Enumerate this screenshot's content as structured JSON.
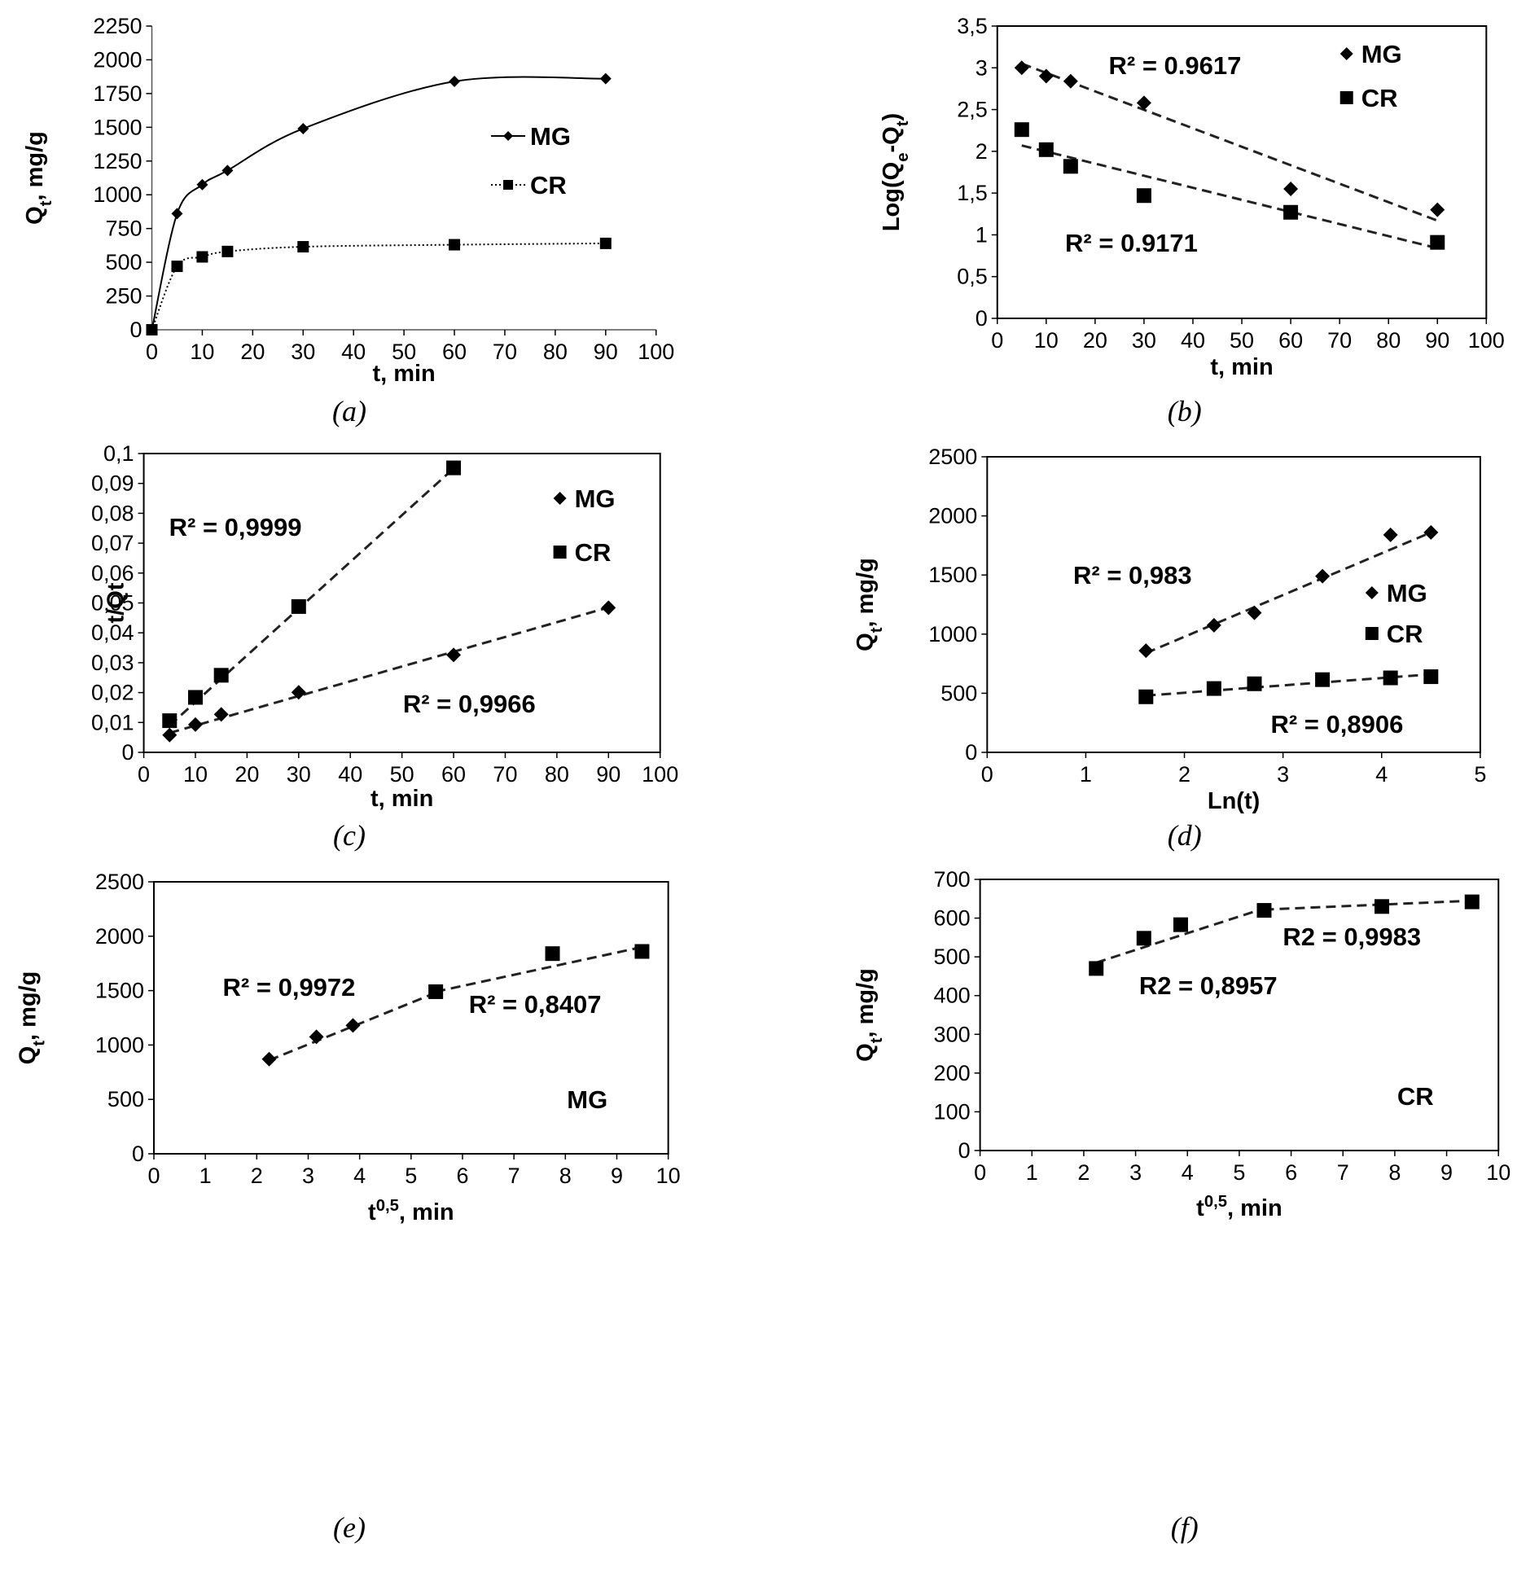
{
  "chart_data": [
    {
      "type": "line",
      "caption": "(a)",
      "xlabel": "t, min",
      "ylabel": [
        "Q",
        {
          "sub": "t"
        },
        ", mg/g"
      ],
      "xlim": [
        0,
        100
      ],
      "xticks": [
        0,
        10,
        20,
        30,
        40,
        50,
        60,
        70,
        80,
        90,
        100
      ],
      "ylim": [
        0,
        2250
      ],
      "yticks": [
        0,
        250,
        500,
        750,
        1000,
        1250,
        1500,
        1750,
        2000,
        2250
      ],
      "frame": false,
      "series": [
        {
          "name": "MG",
          "color": "#000000",
          "marker": "diamond",
          "dash": "none",
          "x": [
            0,
            5,
            10,
            15,
            30,
            60,
            90
          ],
          "values": [
            0,
            860,
            1075,
            1180,
            1490,
            1840,
            1860
          ]
        },
        {
          "name": "CR",
          "color": "#000000",
          "marker": "square",
          "dash": "dotted",
          "x": [
            0,
            5,
            10,
            15,
            30,
            60,
            90
          ],
          "values": [
            0,
            470,
            540,
            580,
            615,
            630,
            640
          ]
        }
      ]
    },
    {
      "type": "scatter",
      "caption": "(b)",
      "xlabel": "t, min",
      "ylabel": [
        "Log(Q",
        {
          "sub": "e"
        },
        "-Q",
        {
          "sub": "t"
        },
        ")"
      ],
      "xlim": [
        0,
        100
      ],
      "xticks": [
        0,
        10,
        20,
        30,
        40,
        50,
        60,
        70,
        80,
        90,
        100
      ],
      "ylim": [
        0,
        3.5
      ],
      "yticks": [
        0,
        {
          "value": 0.5,
          "label": "0,5"
        },
        1,
        {
          "value": 1.5,
          "label": "1,5"
        },
        2,
        {
          "value": 2.5,
          "label": "2,5"
        },
        3,
        {
          "value": 3.5,
          "label": "3,5"
        }
      ],
      "frame": true,
      "series": [
        {
          "name": "MG",
          "color": "#000000",
          "marker": "diamond",
          "x": [
            5,
            10,
            15,
            30,
            60,
            90
          ],
          "values": [
            3.0,
            2.9,
            2.84,
            2.58,
            1.55,
            1.3
          ]
        },
        {
          "name": "CR",
          "color": "#000000",
          "marker": "square",
          "x": [
            5,
            10,
            15,
            30,
            60,
            90
          ],
          "values": [
            2.26,
            2.02,
            1.82,
            1.47,
            1.27,
            0.91
          ]
        }
      ],
      "fits": [
        {
          "x": [
            5,
            90
          ],
          "y": [
            3.05,
            1.17
          ]
        },
        {
          "x": [
            5,
            90
          ],
          "y": [
            2.07,
            0.84
          ]
        }
      ],
      "annotations": [
        "R² = 0.9617",
        "R² = 0.9171"
      ]
    },
    {
      "type": "scatter",
      "caption": "(c)",
      "xlabel": "t, min",
      "ylabel": "t/Qt",
      "xlim": [
        0,
        100
      ],
      "xticks": [
        0,
        10,
        20,
        30,
        40,
        50,
        60,
        70,
        80,
        90,
        100
      ],
      "ylim": [
        0,
        0.1
      ],
      "yticks": [
        0,
        {
          "value": 0.01,
          "label": "0,01"
        },
        {
          "value": 0.02,
          "label": "0,02"
        },
        {
          "value": 0.03,
          "label": "0,03"
        },
        {
          "value": 0.04,
          "label": "0,04"
        },
        {
          "value": 0.05,
          "label": "0,05"
        },
        {
          "value": 0.06,
          "label": "0,06"
        },
        {
          "value": 0.07,
          "label": "0,07"
        },
        {
          "value": 0.08,
          "label": "0,08"
        },
        {
          "value": 0.09,
          "label": "0,09"
        },
        {
          "value": 0.1,
          "label": "0,1"
        }
      ],
      "frame": true,
      "series": [
        {
          "name": "MG",
          "color": "#000000",
          "marker": "diamond",
          "x": [
            5,
            10,
            15,
            30,
            60,
            90
          ],
          "values": [
            0.0058,
            0.0093,
            0.0127,
            0.0201,
            0.0326,
            0.0484
          ]
        },
        {
          "name": "CR",
          "color": "#000000",
          "marker": "square",
          "x": [
            5,
            10,
            15,
            30,
            60
          ],
          "values": [
            0.0106,
            0.0184,
            0.0258,
            0.0488,
            0.0952
          ]
        }
      ],
      "fits": [
        {
          "x": [
            5,
            60
          ],
          "y": [
            0.009,
            0.095
          ]
        },
        {
          "x": [
            5,
            90
          ],
          "y": [
            0.0065,
            0.0485
          ]
        }
      ],
      "annotations": [
        "R² = 0,9999",
        "R² = 0,9966"
      ]
    },
    {
      "type": "scatter",
      "caption": "(d)",
      "xlabel": "Ln(t)",
      "ylabel": [
        "Q",
        {
          "sub": "t"
        },
        ", mg/g"
      ],
      "xlim": [
        0,
        5
      ],
      "xticks": [
        0,
        1,
        2,
        3,
        4,
        5
      ],
      "ylim": [
        0,
        2500
      ],
      "yticks": [
        0,
        500,
        1000,
        1500,
        2000,
        2500
      ],
      "frame": true,
      "series": [
        {
          "name": "MG",
          "color": "#000000",
          "marker": "diamond",
          "x": [
            1.61,
            2.3,
            2.71,
            3.4,
            4.09,
            4.5
          ],
          "values": [
            860,
            1075,
            1180,
            1490,
            1840,
            1860
          ]
        },
        {
          "name": "CR",
          "color": "#000000",
          "marker": "square",
          "x": [
            1.61,
            2.3,
            2.71,
            3.4,
            4.09,
            4.5
          ],
          "values": [
            470,
            540,
            580,
            615,
            630,
            640
          ]
        }
      ],
      "fits": [
        {
          "x": [
            1.61,
            4.5
          ],
          "y": [
            840,
            1860
          ]
        },
        {
          "x": [
            1.61,
            4.5
          ],
          "y": [
            480,
            660
          ]
        }
      ],
      "annotations": [
        "R² = 0,983",
        "R² = 0,8906"
      ]
    },
    {
      "type": "scatter",
      "caption": "(e)",
      "xlabel": [
        "t",
        {
          "sup": "0,5"
        },
        ", min"
      ],
      "ylabel": [
        "Q",
        {
          "sub": "t"
        },
        ", mg/g"
      ],
      "xlim": [
        0,
        10
      ],
      "xticks": [
        0,
        1,
        2,
        3,
        4,
        5,
        6,
        7,
        8,
        9,
        10
      ],
      "ylim": [
        0,
        2500
      ],
      "yticks": [
        0,
        500,
        1000,
        1500,
        2000,
        2500
      ],
      "frame": true,
      "series": [
        {
          "color": "#000000",
          "marker": "diamond",
          "x": [
            2.24,
            3.16,
            3.87
          ],
          "values": [
            870,
            1075,
            1180
          ]
        },
        {
          "color": "#000000",
          "marker": "square",
          "x": [
            5.48,
            7.75,
            9.49
          ],
          "values": [
            1490,
            1840,
            1860
          ]
        }
      ],
      "fits": [
        {
          "x": [
            2.24,
            5.48
          ],
          "y": [
            860,
            1480
          ]
        },
        {
          "x": [
            5.48,
            9.49
          ],
          "y": [
            1490,
            1900
          ]
        }
      ],
      "annotations": [
        "R² = 0,9972",
        "R² = 0,8407",
        "MG"
      ]
    },
    {
      "type": "scatter",
      "caption": "(f)",
      "xlabel": [
        "t",
        {
          "sup": "0,5"
        },
        ", min"
      ],
      "ylabel": [
        "Q",
        {
          "sub": "t"
        },
        ", mg/g"
      ],
      "xlim": [
        0,
        10
      ],
      "xticks": [
        0,
        1,
        2,
        3,
        4,
        5,
        6,
        7,
        8,
        9,
        10
      ],
      "ylim": [
        0,
        700
      ],
      "yticks": [
        0,
        100,
        200,
        300,
        400,
        500,
        600,
        700
      ],
      "frame": true,
      "series": [
        {
          "color": "#000000",
          "marker": "square",
          "x": [
            2.24,
            3.16,
            3.87,
            5.48,
            7.75,
            9.49
          ],
          "values": [
            470,
            548,
            583,
            620,
            630,
            642
          ]
        }
      ],
      "fits": [
        {
          "x": [
            2.24,
            5.48
          ],
          "y": [
            485,
            625
          ]
        },
        {
          "x": [
            5.48,
            9.49
          ],
          "y": [
            622,
            645
          ]
        }
      ],
      "annotations": [
        "R2 = 0,9983",
        "R2 = 0,8957",
        "CR"
      ]
    }
  ]
}
